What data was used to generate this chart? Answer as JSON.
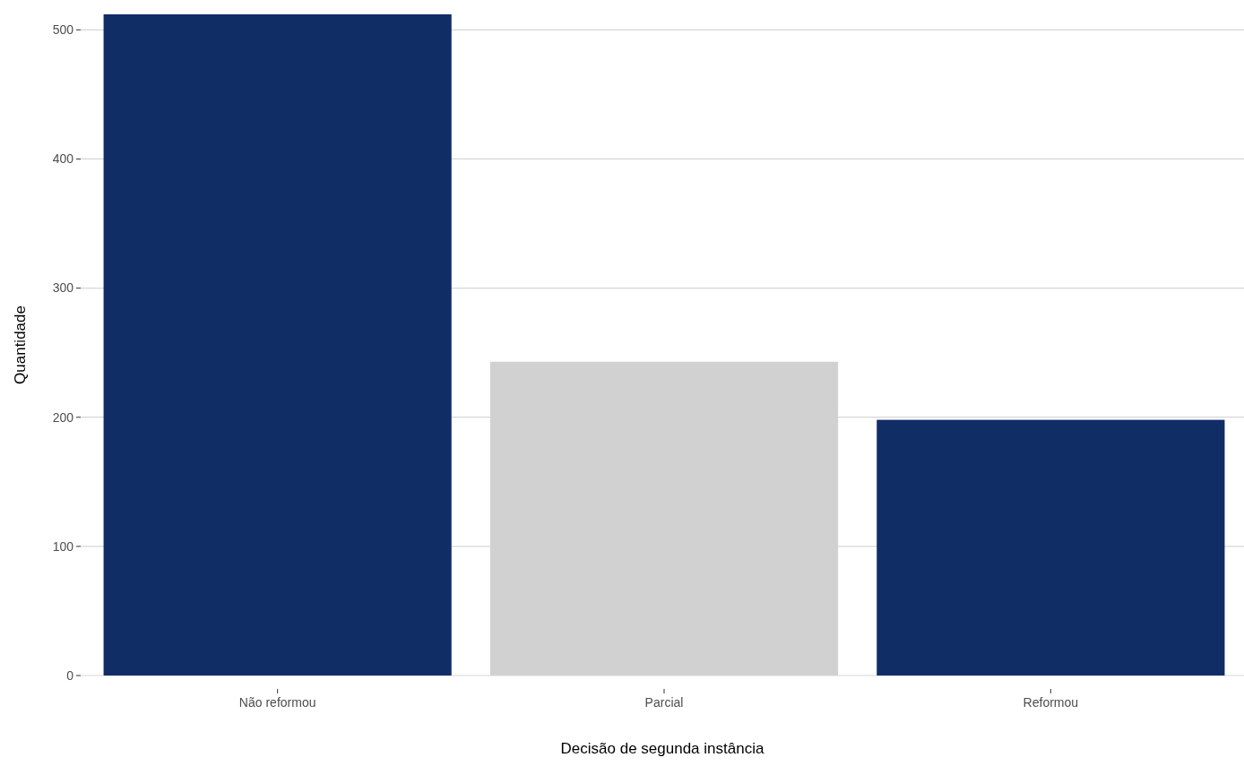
{
  "chart_data": {
    "type": "bar",
    "xlabel": "Decisão de segunda instância",
    "ylabel": "Quantidade",
    "categories": [
      "Não reformou",
      "Parcial",
      "Reformou"
    ],
    "values": [
      512,
      243,
      198
    ],
    "colors": [
      "#112d66",
      "#d1d1d1",
      "#112d66"
    ],
    "ylim": [
      0,
      512
    ],
    "yticks": [
      0,
      100,
      200,
      300,
      400,
      500
    ],
    "grid": "y"
  }
}
